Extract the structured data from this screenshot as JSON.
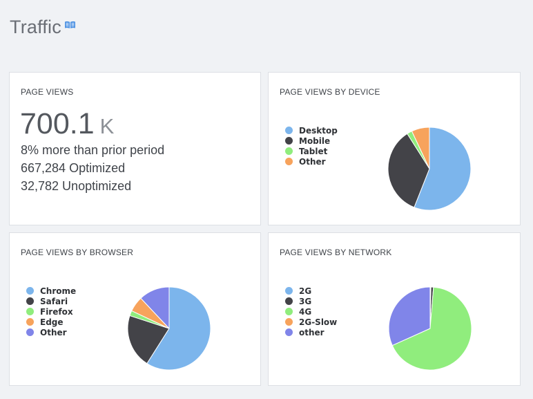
{
  "header": {
    "title": "Traffic",
    "icon": "book-icon"
  },
  "page_views": {
    "title": "PAGE VIEWS",
    "value": "700.1",
    "unit": "K",
    "change": "8% more than prior period",
    "optimized": "667,284 Optimized",
    "unoptimized": "32,782 Unoptimized"
  },
  "chart_data": [
    {
      "type": "pie",
      "title": "PAGE VIEWS BY DEVICE",
      "categories": [
        "Desktop",
        "Mobile",
        "Tablet",
        "Other"
      ],
      "values": [
        56,
        35,
        2,
        7
      ],
      "colors": [
        "#7cb5ec",
        "#434348",
        "#90ed7d",
        "#f7a35c"
      ],
      "legend": "left"
    },
    {
      "type": "pie",
      "title": "PAGE VIEWS BY BROWSER",
      "categories": [
        "Chrome",
        "Safari",
        "Firefox",
        "Edge",
        "Other"
      ],
      "values": [
        59,
        21,
        2,
        6,
        12
      ],
      "colors": [
        "#7cb5ec",
        "#434348",
        "#90ed7d",
        "#f7a35c",
        "#8085e9"
      ],
      "legend": "left"
    },
    {
      "type": "pie",
      "title": "PAGE VIEWS BY NETWORK",
      "categories": [
        "2G",
        "3G",
        "4G",
        "2G-Slow",
        "other"
      ],
      "values": [
        0.3,
        1,
        67,
        0,
        31.7
      ],
      "colors": [
        "#7cb5ec",
        "#434348",
        "#90ed7d",
        "#f7a35c",
        "#8085e9"
      ],
      "legend": "left"
    }
  ]
}
